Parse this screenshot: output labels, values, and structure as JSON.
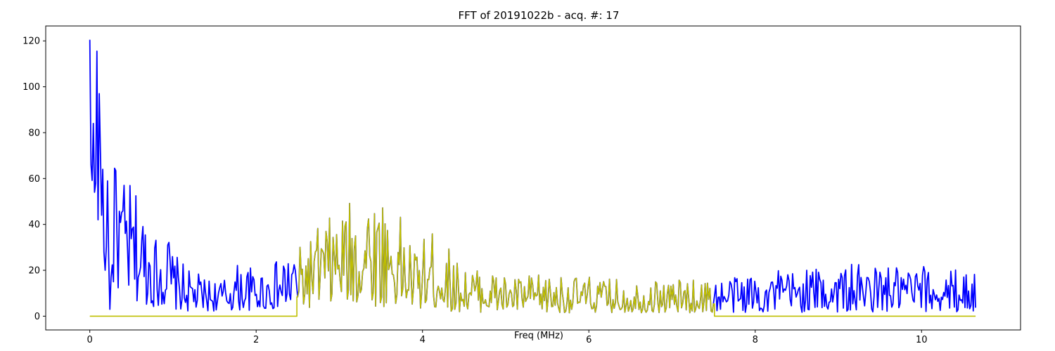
{
  "chart_data": {
    "type": "line",
    "title": "FFT of 20191022b - acq. #: 17",
    "xlabel": "Freq (MHz)",
    "ylabel": "",
    "xlim": [
      -0.53,
      11.19
    ],
    "ylim": [
      -6.0,
      126.5
    ],
    "xticks": [
      0,
      2,
      4,
      6,
      8,
      10
    ],
    "yticks": [
      0,
      20,
      40,
      60,
      80,
      100,
      120
    ],
    "grid": false,
    "legend": "none",
    "colors": {
      "spectrum": "#0000ff",
      "window": "#bfbf00"
    },
    "series": [
      {
        "role": "spectrum",
        "style": "noisy-line",
        "x_range": [
          0,
          10.65
        ],
        "step": 0.0142,
        "envelope": [
          [
            0.0,
            120.5
          ],
          [
            0.02,
            66
          ],
          [
            0.04,
            84
          ],
          [
            0.06,
            54
          ],
          [
            0.08,
            115.5
          ],
          [
            0.1,
            42
          ],
          [
            0.12,
            97
          ],
          [
            0.14,
            44
          ],
          [
            0.16,
            64
          ],
          [
            0.18,
            20
          ],
          [
            0.22,
            59
          ],
          [
            0.24,
            3
          ],
          [
            0.3,
            64.5
          ],
          [
            0.4,
            60.5
          ],
          [
            0.5,
            56.5
          ],
          [
            0.6,
            52
          ],
          [
            0.7,
            45
          ],
          [
            0.8,
            35
          ],
          [
            0.9,
            44.5
          ],
          [
            1.0,
            28
          ],
          [
            1.1,
            24
          ],
          [
            1.2,
            20
          ],
          [
            1.4,
            17
          ],
          [
            1.6,
            16
          ],
          [
            1.8,
            24
          ],
          [
            2.0,
            20
          ],
          [
            2.3,
            25
          ],
          [
            2.45,
            31
          ],
          [
            2.5,
            29
          ],
          [
            2.8,
            42
          ],
          [
            3.0,
            46
          ],
          [
            3.2,
            52
          ],
          [
            3.35,
            58.5
          ],
          [
            3.5,
            54
          ],
          [
            3.7,
            46
          ],
          [
            3.9,
            30
          ],
          [
            4.18,
            40
          ],
          [
            4.4,
            24
          ],
          [
            4.6,
            22
          ],
          [
            5.0,
            18
          ],
          [
            5.5,
            18
          ],
          [
            6.0,
            17
          ],
          [
            6.5,
            16
          ],
          [
            7.0,
            16
          ],
          [
            7.5,
            16
          ],
          [
            8.0,
            20
          ],
          [
            8.5,
            21
          ],
          [
            9.0,
            23
          ],
          [
            9.5,
            22
          ],
          [
            10.0,
            22
          ],
          [
            10.65,
            20
          ]
        ],
        "floor": [
          [
            0.0,
            64
          ],
          [
            0.2,
            15
          ],
          [
            0.6,
            5
          ],
          [
            1.2,
            2
          ],
          [
            2.5,
            3
          ],
          [
            3.0,
            5
          ],
          [
            3.6,
            4
          ],
          [
            4.4,
            2
          ],
          [
            5.0,
            1.5
          ],
          [
            7.5,
            1.5
          ],
          [
            10.65,
            2
          ]
        ]
      },
      {
        "role": "window",
        "style": "gated",
        "x_range": [
          0,
          10.65
        ],
        "gate": [
          2.49,
          7.51
        ],
        "outside_value": 0
      }
    ]
  }
}
